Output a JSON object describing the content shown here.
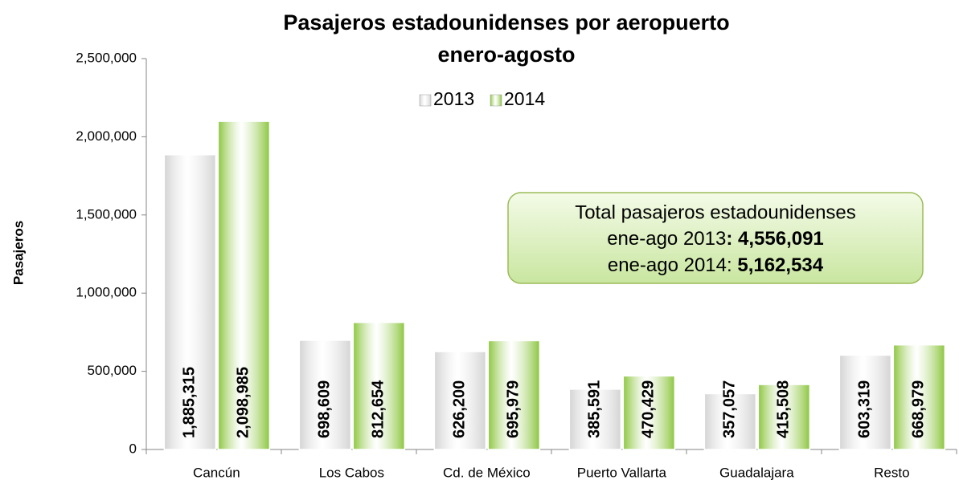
{
  "chart_data": {
    "type": "bar",
    "title": "Pasajeros estadounidenses por aeropuerto",
    "subtitle": "enero-agosto",
    "y_label": "Pasajeros",
    "categories": [
      "Cancún",
      "Los Cabos",
      "Cd. de México",
      "Puerto Vallarta",
      "Guadalajara",
      "Resto"
    ],
    "series": [
      {
        "name": "2013",
        "color": "#d4d4d4",
        "values": [
          1885315,
          698609,
          626200,
          385591,
          357057,
          603319
        ],
        "value_labels": [
          "1,885,315",
          "698,609",
          "626,200",
          "385,591",
          "357,057",
          "603,319"
        ]
      },
      {
        "name": "2014",
        "color": "#8cc63f",
        "values": [
          2098985,
          812654,
          695979,
          470429,
          415508,
          668979
        ],
        "value_labels": [
          "2,098,985",
          "812,654",
          "695,979",
          "470,429",
          "415,508",
          "668,979"
        ]
      }
    ],
    "ylim": [
      0,
      2500000
    ],
    "yticks": [
      0,
      {
        "value": 500000,
        "label": "500,000"
      },
      {
        "value": 1000000,
        "label": "1,000,000"
      },
      {
        "value": 1500000,
        "label": "1,500,000"
      },
      {
        "value": 2000000,
        "label": "2,000,000"
      },
      {
        "value": 2500000,
        "label": "2,500,000"
      }
    ],
    "grid": false,
    "annotation": {
      "title": "Total pasajeros estadounidenses",
      "lines": [
        [
          "ene-ago 2013",
          ": 4,556,091"
        ],
        [
          "ene-ago 2014: ",
          "5,162,534"
        ]
      ]
    }
  }
}
